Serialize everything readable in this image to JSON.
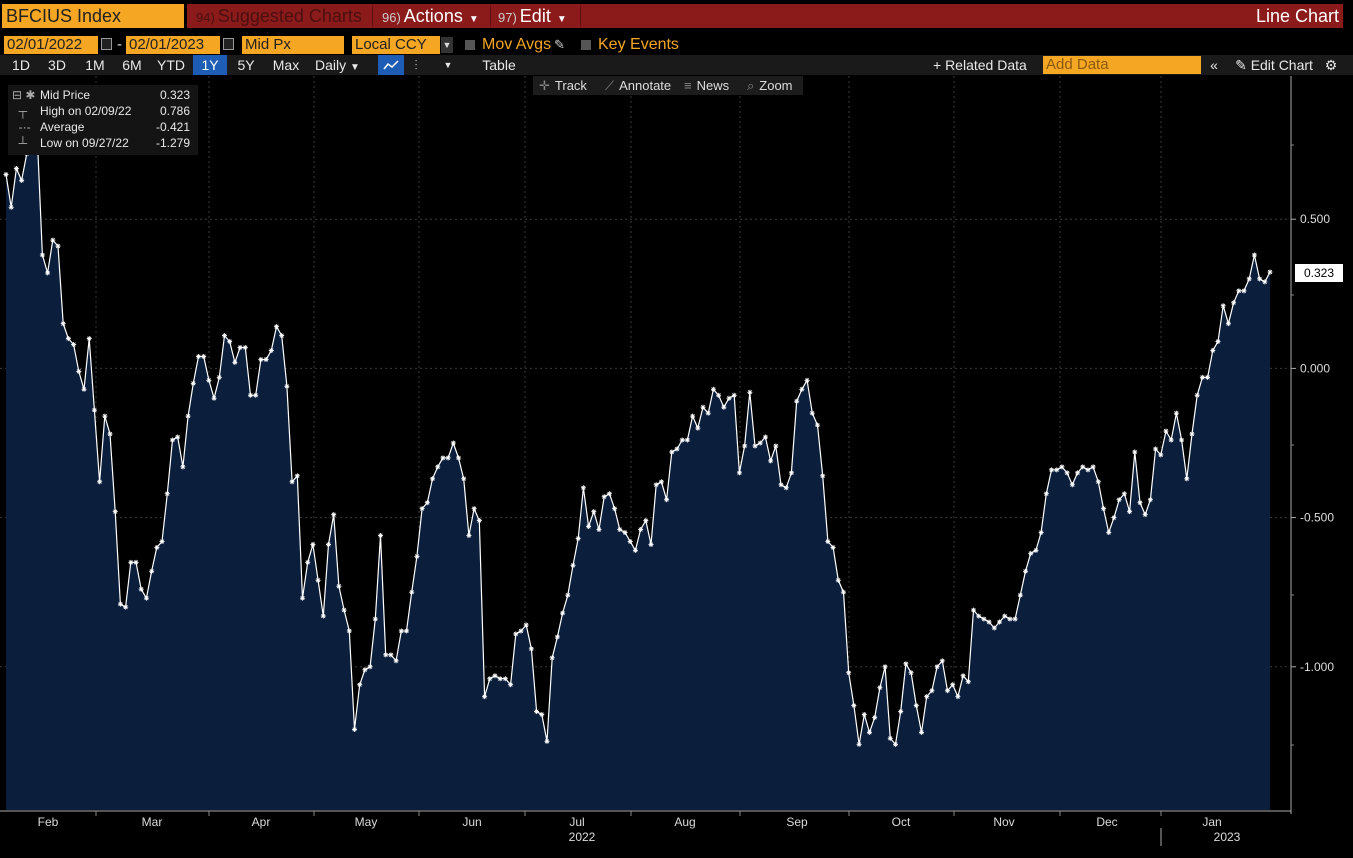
{
  "header": {
    "ticker": "BFCIUS Index",
    "suggested": {
      "num": "94)",
      "label": "Suggested Charts"
    },
    "actions": {
      "num": "96)",
      "label": "Actions"
    },
    "edit": {
      "num": "97)",
      "label": "Edit"
    },
    "chart_type": "Line Chart"
  },
  "controls": {
    "start_date": "02/01/2022",
    "dash": "-",
    "end_date": "02/01/2023",
    "field": "Mid Px",
    "currency": "Local CCY",
    "mov_avgs": "Mov Avgs",
    "key_events": "Key Events"
  },
  "toolbar": {
    "ranges": [
      "1D",
      "3D",
      "1M",
      "6M",
      "YTD",
      "1Y",
      "5Y",
      "Max"
    ],
    "active_range": "1Y",
    "frequency": "Daily",
    "table": "Table",
    "related_data": "+ Related Data",
    "add_data_placeholder": "Add Data",
    "edit_chart": "Edit Chart"
  },
  "chart_buttons": {
    "track": "Track",
    "annotate": "Annotate",
    "news": "News",
    "zoom": "Zoom"
  },
  "legend": {
    "mid_price_label": "Mid Price",
    "mid_price_value": "0.323",
    "high_label": "High on 02/09/22",
    "high_value": "0.786",
    "average_label": "Average",
    "average_value": "-0.421",
    "low_label": "Low on 09/27/22",
    "low_value": "-1.279"
  },
  "last_value_label": "0.323",
  "colors": {
    "accent": "#f5a623",
    "menu_bar": "#8b1a1a",
    "area_fill": "#0b1f3c",
    "line": "#ffffff",
    "active_button": "#1e5db5"
  },
  "chart_data": {
    "type": "area",
    "series_name": "Mid Price",
    "y_ticks": [
      0.5,
      0.0,
      -0.5,
      -1.0
    ],
    "y_tick_labels": [
      "0.500",
      "0.000",
      "-0.500",
      "-1.000"
    ],
    "ylim": [
      -1.48,
      0.98
    ],
    "x_ticks": [
      "Feb",
      "Mar",
      "Apr",
      "May",
      "Jun",
      "Jul",
      "Aug",
      "Sep",
      "Oct",
      "Nov",
      "Dec",
      "Jan"
    ],
    "year_labels": [
      "2022",
      "2023"
    ],
    "grid": true,
    "values": [
      0.65,
      0.54,
      0.67,
      0.63,
      0.72,
      0.786,
      0.78,
      0.38,
      0.32,
      0.43,
      0.41,
      0.15,
      0.1,
      0.08,
      -0.01,
      -0.07,
      0.1,
      -0.14,
      -0.38,
      -0.16,
      -0.22,
      -0.48,
      -0.79,
      -0.8,
      -0.65,
      -0.65,
      -0.74,
      -0.77,
      -0.68,
      -0.6,
      -0.58,
      -0.42,
      -0.24,
      -0.23,
      -0.33,
      -0.16,
      -0.05,
      0.04,
      0.04,
      -0.04,
      -0.1,
      -0.03,
      0.11,
      0.09,
      0.02,
      0.07,
      0.07,
      -0.09,
      -0.09,
      0.03,
      0.03,
      0.06,
      0.14,
      0.11,
      -0.06,
      -0.38,
      -0.36,
      -0.77,
      -0.65,
      -0.59,
      -0.71,
      -0.83,
      -0.59,
      -0.49,
      -0.73,
      -0.81,
      -0.88,
      -1.21,
      -1.06,
      -1.01,
      -1.0,
      -0.84,
      -0.56,
      -0.96,
      -0.96,
      -0.98,
      -0.88,
      -0.88,
      -0.75,
      -0.63,
      -0.47,
      -0.45,
      -0.37,
      -0.33,
      -0.3,
      -0.3,
      -0.25,
      -0.3,
      -0.37,
      -0.56,
      -0.47,
      -0.51,
      -1.1,
      -1.04,
      -1.03,
      -1.04,
      -1.04,
      -1.06,
      -0.89,
      -0.88,
      -0.86,
      -0.94,
      -1.15,
      -1.16,
      -1.25,
      -0.97,
      -0.9,
      -0.82,
      -0.76,
      -0.66,
      -0.57,
      -0.4,
      -0.53,
      -0.48,
      -0.54,
      -0.43,
      -0.42,
      -0.47,
      -0.54,
      -0.55,
      -0.58,
      -0.61,
      -0.54,
      -0.51,
      -0.59,
      -0.39,
      -0.38,
      -0.44,
      -0.28,
      -0.27,
      -0.24,
      -0.24,
      -0.16,
      -0.2,
      -0.13,
      -0.15,
      -0.07,
      -0.09,
      -0.13,
      -0.1,
      -0.09,
      -0.35,
      -0.26,
      -0.08,
      -0.26,
      -0.25,
      -0.23,
      -0.31,
      -0.26,
      -0.39,
      -0.4,
      -0.35,
      -0.11,
      -0.07,
      -0.04,
      -0.15,
      -0.19,
      -0.36,
      -0.58,
      -0.6,
      -0.71,
      -0.75,
      -1.02,
      -1.13,
      -1.26,
      -1.16,
      -1.22,
      -1.17,
      -1.07,
      -1.0,
      -1.24,
      -1.26,
      -1.15,
      -0.99,
      -1.02,
      -1.13,
      -1.22,
      -1.1,
      -1.08,
      -1.0,
      -0.98,
      -1.08,
      -1.06,
      -1.1,
      -1.03,
      -1.05,
      -0.81,
      -0.83,
      -0.84,
      -0.85,
      -0.87,
      -0.85,
      -0.83,
      -0.84,
      -0.84,
      -0.76,
      -0.68,
      -0.62,
      -0.61,
      -0.55,
      -0.42,
      -0.34,
      -0.34,
      -0.33,
      -0.35,
      -0.39,
      -0.35,
      -0.33,
      -0.34,
      -0.33,
      -0.38,
      -0.47,
      -0.55,
      -0.5,
      -0.44,
      -0.42,
      -0.48,
      -0.28,
      -0.45,
      -0.49,
      -0.44,
      -0.27,
      -0.29,
      -0.21,
      -0.24,
      -0.15,
      -0.24,
      -0.37,
      -0.22,
      -0.09,
      -0.03,
      -0.03,
      0.06,
      0.09,
      0.21,
      0.15,
      0.22,
      0.26,
      0.26,
      0.3,
      0.38,
      0.3,
      0.29,
      0.323
    ]
  }
}
